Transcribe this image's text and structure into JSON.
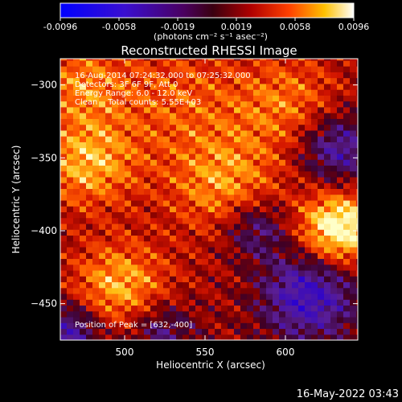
{
  "colorbar": {
    "ticks": [
      "-0.0096",
      "-0.0058",
      "-0.0019",
      "0.0019",
      "0.0058",
      "0.0096"
    ],
    "units_label": "(photons cm⁻² s⁻¹ asec⁻²)"
  },
  "chart_data": {
    "type": "heatmap",
    "title": "Reconstructed RHESSI Image",
    "xlabel": "Heliocentric X (arcsec)",
    "ylabel": "Heliocentric Y (arcsec)",
    "xlim": [
      460,
      645
    ],
    "ylim": [
      -475,
      -282
    ],
    "x_ticks": [
      500,
      550,
      600
    ],
    "y_ticks": [
      -300,
      -350,
      -400,
      -450
    ],
    "color_range": [
      -0.0096,
      0.0096
    ],
    "colormap": "blue-purple-red-yellow-white",
    "annotations": {
      "time_range": "16-Aug-2014 07:24:32.000 to 07:25:32.000",
      "detectors": "Detectors: 3F 6F 9F, Att 0",
      "energy": "Energy Range: 6.0 - 12.0 keV",
      "method": "Clean    Total counts: 5.55E+03",
      "peak": "Position of Peak = [632,-400]"
    },
    "peak": [
      632,
      -400
    ]
  },
  "footer_timestamp": "16-May-2022 03:43"
}
